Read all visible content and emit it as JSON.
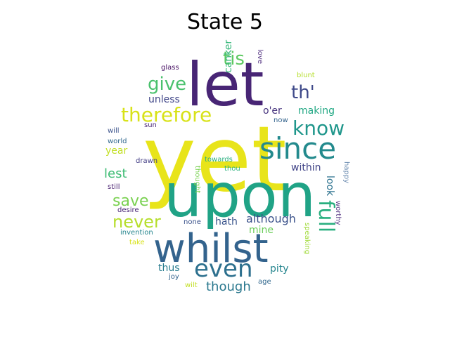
{
  "title": "State 5",
  "words": [
    {
      "text": "yet",
      "color": "#e8e41a"
    },
    {
      "text": "let",
      "color": "#482575"
    },
    {
      "text": "upon",
      "color": "#20a386"
    },
    {
      "text": "whilst",
      "color": "#33638d"
    },
    {
      "text": "since",
      "color": "#238a8d"
    },
    {
      "text": "even",
      "color": "#2d708e"
    },
    {
      "text": "therefore",
      "color": "#d8e219"
    },
    {
      "text": "know",
      "color": "#1f968b"
    },
    {
      "text": "th'",
      "color": "#3e4989"
    },
    {
      "text": "give",
      "color": "#4ac16d"
    },
    {
      "text": "tis",
      "color": "#5ec962"
    },
    {
      "text": "save",
      "color": "#7ad151"
    },
    {
      "text": "never",
      "color": "#b5de2b"
    },
    {
      "text": "full",
      "color": "#29af7f"
    },
    {
      "text": "lest",
      "color": "#3dbc74"
    },
    {
      "text": "though",
      "color": "#2a788e"
    },
    {
      "text": "although",
      "color": "#3b528b"
    },
    {
      "text": "unless",
      "color": "#404688"
    },
    {
      "text": "making",
      "color": "#22a884"
    },
    {
      "text": "o'er",
      "color": "#46337e"
    },
    {
      "text": "within",
      "color": "#414487"
    },
    {
      "text": "look",
      "color": "#2c728e"
    },
    {
      "text": "year",
      "color": "#c2df23"
    },
    {
      "text": "hath",
      "color": "#3a548c"
    },
    {
      "text": "mine",
      "color": "#6ccd5a"
    },
    {
      "text": "pity",
      "color": "#25858e"
    },
    {
      "text": "thus",
      "color": "#287c8e"
    },
    {
      "text": "canker",
      "color": "#35b779"
    },
    {
      "text": "love",
      "color": "#5b3c87"
    },
    {
      "text": "blunt",
      "color": "#b5de2b"
    },
    {
      "text": "glass",
      "color": "#471063"
    },
    {
      "text": "now",
      "color": "#33638d"
    },
    {
      "text": "sun",
      "color": "#482878"
    },
    {
      "text": "will",
      "color": "#3b528b"
    },
    {
      "text": "world",
      "color": "#31688e"
    },
    {
      "text": "drawn",
      "color": "#433e85"
    },
    {
      "text": "towards",
      "color": "#29af7f"
    },
    {
      "text": "thou",
      "color": "#2db27d"
    },
    {
      "text": "still",
      "color": "#481f70"
    },
    {
      "text": "thought",
      "color": "#7ad151"
    },
    {
      "text": "happy",
      "color": "#6c8cb0"
    },
    {
      "text": "worthy",
      "color": "#5b3c87"
    },
    {
      "text": "desire",
      "color": "#482475"
    },
    {
      "text": "none",
      "color": "#3b528b"
    },
    {
      "text": "invention",
      "color": "#25858e"
    },
    {
      "text": "speaking",
      "color": "#a0da39"
    },
    {
      "text": "take",
      "color": "#d8e219"
    },
    {
      "text": "joy",
      "color": "#33638d"
    },
    {
      "text": "age",
      "color": "#31688e"
    },
    {
      "text": "wilt",
      "color": "#c2df23"
    }
  ]
}
